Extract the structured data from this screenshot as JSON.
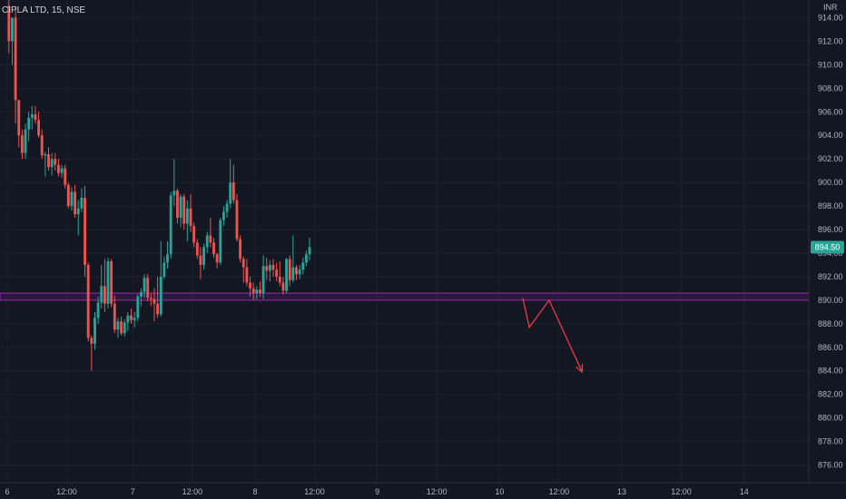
{
  "header": {
    "symbol_title": "CIPLA LTD, 15, NSE"
  },
  "price_axis": {
    "currency": "INR",
    "last_price_label": "894.50",
    "last_price_color": "#26a69a"
  },
  "colors": {
    "background": "#131722",
    "grid": "#1e222d",
    "up": "#26a69a",
    "down": "#ef5350",
    "zone": "#9c27b0",
    "arrow": "#f23645",
    "axis_text": "#b2b5be"
  },
  "chart_data": {
    "type": "candlestick",
    "title": "CIPLA LTD, 15, NSE",
    "ylim": [
      874.5,
      915.5
    ],
    "y_ticks": [
      876,
      878,
      880,
      882,
      884,
      886,
      888,
      890,
      892,
      894,
      896,
      898,
      900,
      902,
      904,
      906,
      908,
      910,
      912,
      914
    ],
    "y_tick_labels": [
      "876.00",
      "878.00",
      "880.00",
      "882.00",
      "884.00",
      "886.00",
      "888.00",
      "890.00",
      "892.00",
      "894.00",
      "896.00",
      "898.00",
      "900.00",
      "902.00",
      "904.00",
      "906.00",
      "908.00",
      "910.00",
      "912.00",
      "914.00"
    ],
    "x_ticks": [
      {
        "label": "6",
        "bar": 0
      },
      {
        "label": "12:00",
        "bar": 18
      },
      {
        "label": "7",
        "bar": 38
      },
      {
        "label": "12:00",
        "bar": 56
      },
      {
        "label": "8",
        "bar": 75
      },
      {
        "label": "12:00",
        "bar": 93
      },
      {
        "label": "9",
        "bar": 112
      },
      {
        "label": "12:00",
        "bar": 130
      },
      {
        "label": "10",
        "bar": 149
      },
      {
        "label": "12:00",
        "bar": 167
      },
      {
        "label": "13",
        "bar": 186
      },
      {
        "label": "12:00",
        "bar": 204
      },
      {
        "label": "14",
        "bar": 223
      }
    ],
    "last_price": 894.5,
    "support_zone": [
      890.0,
      890.6
    ],
    "projection_path": [
      {
        "bar": 156,
        "price": 890.2
      },
      {
        "bar": 158,
        "price": 887.7
      },
      {
        "bar": 164,
        "price": 890.0
      },
      {
        "bar": 174,
        "price": 883.9
      }
    ],
    "candles": [
      [
        915,
        915.5,
        911,
        912
      ],
      [
        912,
        914,
        910,
        914
      ],
      [
        914,
        915,
        905,
        907
      ],
      [
        907,
        907,
        903,
        904
      ],
      [
        904,
        904.5,
        902,
        902.5
      ],
      [
        902.5,
        905,
        902,
        904.5
      ],
      [
        904.5,
        906,
        903.5,
        905.5
      ],
      [
        905.5,
        906.5,
        904.5,
        905.8
      ],
      [
        905.8,
        906.5,
        905,
        905.3
      ],
      [
        905.3,
        906,
        903.8,
        904
      ],
      [
        904,
        904.5,
        902,
        902.3
      ],
      [
        902.3,
        902.6,
        900.5,
        902.4
      ],
      [
        902.4,
        903,
        901,
        901.3
      ],
      [
        901.3,
        902.5,
        900.6,
        902
      ],
      [
        902,
        902.5,
        901,
        901.5
      ],
      [
        901.5,
        902,
        900.5,
        900.8
      ],
      [
        900.8,
        901.5,
        900.4,
        901.2
      ],
      [
        901.2,
        901.5,
        899.5,
        899.8
      ],
      [
        899.8,
        900,
        897.8,
        898
      ],
      [
        898,
        899.6,
        897.6,
        899.2
      ],
      [
        899.2,
        899.8,
        897,
        897.3
      ],
      [
        897.3,
        898.5,
        895.5,
        897.8
      ],
      [
        897.8,
        899.5,
        897.5,
        898.7
      ],
      [
        898.7,
        899.7,
        892,
        893
      ],
      [
        893,
        893.2,
        886.5,
        886.8
      ],
      [
        886.8,
        887,
        884,
        886.3
      ],
      [
        886.3,
        889,
        885.8,
        888.5
      ],
      [
        888.5,
        890.3,
        888,
        889.8
      ],
      [
        889.8,
        893,
        889.3,
        891.2
      ],
      [
        891.2,
        893.5,
        889,
        889.7
      ],
      [
        889.7,
        893.6,
        889.3,
        893.3
      ],
      [
        893.3,
        893.5,
        889.4,
        889.7
      ],
      [
        889.7,
        890.4,
        887.2,
        887.5
      ],
      [
        887.5,
        888.5,
        886.8,
        888.2
      ],
      [
        888.2,
        888.6,
        887,
        887.2
      ],
      [
        887.2,
        888.4,
        886.9,
        888.1
      ],
      [
        888.1,
        889,
        887.4,
        888.7
      ],
      [
        888.7,
        889.3,
        888,
        888.3
      ],
      [
        888.3,
        889,
        887.7,
        888.5
      ],
      [
        888.5,
        890.5,
        888.2,
        890.3
      ],
      [
        890.3,
        891,
        889.5,
        890.7
      ],
      [
        890.7,
        892.2,
        890.2,
        891.9
      ],
      [
        891.9,
        892.2,
        889.9,
        890.2
      ],
      [
        890.2,
        890.6,
        889.5,
        890.1
      ],
      [
        890.1,
        891,
        888.2,
        889.7
      ],
      [
        889.7,
        892,
        888.5,
        888.8
      ],
      [
        888.8,
        895,
        888.6,
        892
      ],
      [
        892,
        893.7,
        891.8,
        893.2
      ],
      [
        893.2,
        895,
        892.7,
        893.9
      ],
      [
        893.9,
        899.2,
        893.5,
        898.9
      ],
      [
        898.9,
        902,
        898,
        899.3
      ],
      [
        899.3,
        899.5,
        896.5,
        897
      ],
      [
        897,
        899,
        896.2,
        898.8
      ],
      [
        898.8,
        899,
        896,
        896.5
      ],
      [
        896.5,
        898.5,
        895,
        897.8
      ],
      [
        897.8,
        899,
        895.8,
        896.3
      ],
      [
        896.3,
        896.6,
        894.5,
        894.9
      ],
      [
        894.9,
        895.2,
        893.5,
        893.8
      ],
      [
        893.8,
        894.5,
        891.8,
        893
      ],
      [
        893,
        894.8,
        892.6,
        894.5
      ],
      [
        894.5,
        895.8,
        894,
        895.5
      ],
      [
        895.5,
        897,
        894.5,
        894.9
      ],
      [
        894.9,
        895.3,
        893.6,
        893.9
      ],
      [
        893.9,
        894,
        892.7,
        893.2
      ],
      [
        893.2,
        897,
        893,
        896.8
      ],
      [
        896.8,
        898,
        896.3,
        897.5
      ],
      [
        897.5,
        898.5,
        897,
        898.2
      ],
      [
        898.2,
        902,
        897.8,
        900
      ],
      [
        900,
        901.5,
        898.2,
        898.5
      ],
      [
        898.5,
        899,
        895,
        895.2
      ],
      [
        895.2,
        895.5,
        893.2,
        893.5
      ],
      [
        893.5,
        893.7,
        891.5,
        892.8
      ],
      [
        892.8,
        893.5,
        891.2,
        891.5
      ],
      [
        891.5,
        892,
        890.3,
        891
      ],
      [
        891,
        891.5,
        890,
        890.6
      ],
      [
        890.6,
        891.2,
        890.1,
        890.9
      ],
      [
        890.9,
        891.6,
        890.3,
        890.6
      ],
      [
        890.6,
        893.8,
        890.1,
        892.9
      ],
      [
        892.9,
        893.6,
        891.7,
        892.5
      ],
      [
        892.5,
        893.4,
        891.6,
        893
      ],
      [
        893,
        893.5,
        892,
        892.6
      ],
      [
        892.6,
        893.2,
        891.6,
        892
      ],
      [
        892,
        893.3,
        891.2,
        891.5
      ],
      [
        891.5,
        892,
        890.5,
        890.8
      ],
      [
        890.8,
        893.6,
        890.6,
        893.5
      ],
      [
        893.5,
        893.8,
        891.2,
        891.7
      ],
      [
        891.7,
        895.5,
        891.5,
        892.8
      ],
      [
        892.8,
        893,
        891.7,
        892.2
      ],
      [
        892.2,
        893,
        891.8,
        892.6
      ],
      [
        892.6,
        893.6,
        892.2,
        893.2
      ],
      [
        893.2,
        894.2,
        892.9,
        893.9
      ],
      [
        893.9,
        895.3,
        893.4,
        894.5
      ]
    ],
    "x_for_bar_note": "bars indexed from 0 at first x tick",
    "bar_spacing_note": ""
  }
}
